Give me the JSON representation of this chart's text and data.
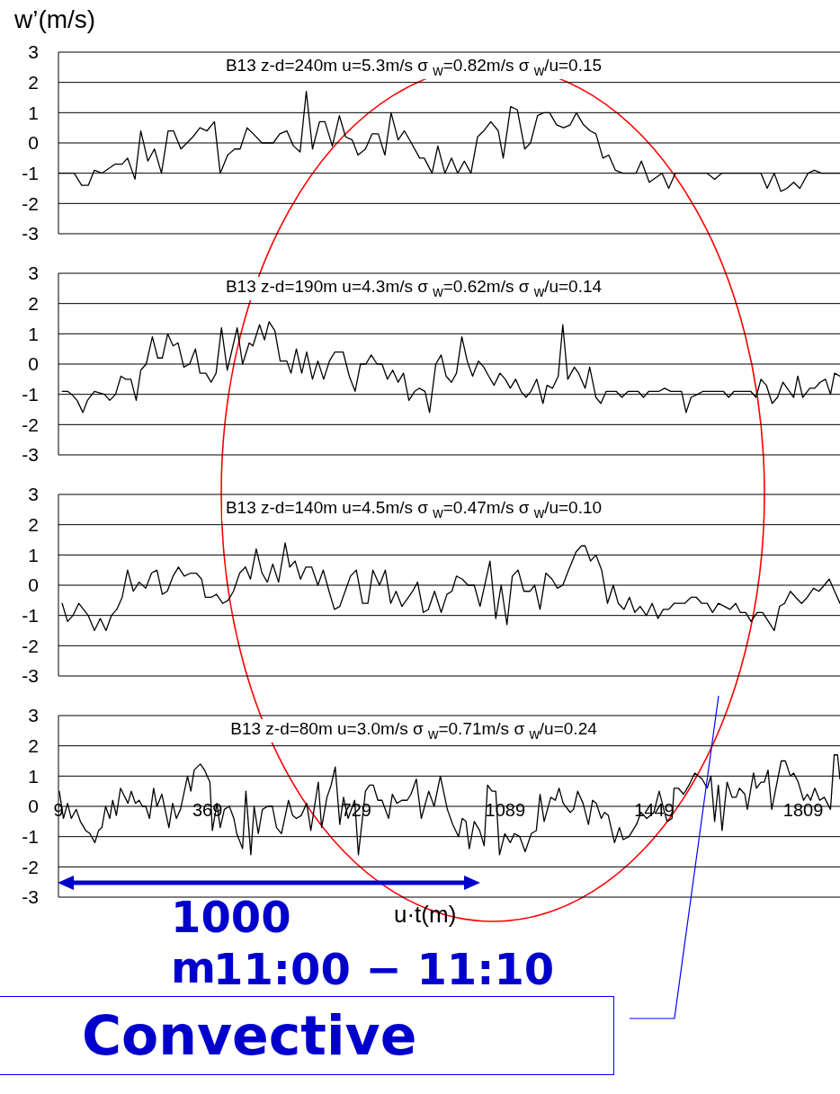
{
  "chart_data": [
    {
      "type": "line",
      "title": "B13 z-d=240m u=5.3m/s σ $_{w}$=0.82m/s σ $_{w}$/u=0.15",
      "ylabel": "w’(m/s)",
      "color": "#000000",
      "marker": "none",
      "grid": "y",
      "tick_labels": "y",
      "xlim": [
        9,
        1898
      ],
      "ylim": [
        -3,
        3
      ],
      "yticks": [
        -3,
        -2,
        -1,
        0,
        1,
        2,
        3
      ],
      "x": [
        10,
        47,
        65,
        81,
        96,
        114,
        146,
        163,
        176,
        194,
        208,
        225,
        241,
        258,
        274,
        287,
        305,
        334,
        351,
        368,
        386,
        400,
        418,
        435,
        448,
        465,
        480,
        501,
        528,
        544,
        561,
        577,
        593,
        608,
        623,
        640,
        653,
        671,
        688,
        703,
        719,
        733,
        751,
        767,
        782,
        798,
        813,
        830,
        845,
        862,
        882,
        893,
        912,
        926,
        943,
        959,
        974,
        990,
        1006,
        1022,
        1037,
        1054,
        1072,
        1084,
        1102,
        1118,
        1136,
        1150,
        1167,
        1182,
        1196,
        1213,
        1230,
        1246,
        1261,
        1278,
        1294,
        1308,
        1325,
        1339,
        1355,
        1373,
        1405,
        1418,
        1437,
        1468,
        1484,
        1500,
        1564,
        1577,
        1595,
        1612,
        1707,
        1722,
        1739,
        1755,
        1770,
        1786,
        1801,
        1821,
        1836,
        1853,
        1898
      ],
      "values": [
        -1,
        -1,
        -1.4,
        -1.4,
        -0.9,
        -1,
        -0.7,
        -0.7,
        -0.5,
        -1.2,
        0.4,
        -0.6,
        -0.2,
        -1,
        0.4,
        0.4,
        -0.2,
        0.2,
        0.5,
        0.4,
        0.7,
        -1,
        -0.4,
        -0.2,
        -0.2,
        0.5,
        0.3,
        0,
        0,
        0.3,
        0.4,
        -0.1,
        -0.3,
        1.7,
        -0.2,
        0.7,
        0.7,
        -0.1,
        0.9,
        0.2,
        0.1,
        -0.4,
        -0.2,
        0.3,
        0.3,
        -0.4,
        1,
        0.1,
        0.4,
        0,
        -0.5,
        -0.5,
        -1,
        -0.1,
        -1,
        -0.5,
        -1,
        -0.6,
        -1,
        0.2,
        0.4,
        0.7,
        0.4,
        -0.5,
        1.2,
        1.1,
        -0.2,
        0,
        0.9,
        1,
        1,
        0.6,
        0.5,
        0.6,
        1,
        0.6,
        0.4,
        0.3,
        -0.5,
        -0.4,
        -0.9,
        -1,
        -1,
        -0.6,
        -1.3,
        -1,
        -1.5,
        -1,
        -1,
        -1,
        -1.2,
        -1,
        -1,
        -1.5,
        -1,
        -1.6,
        -1.5,
        -1.3,
        -1.5,
        -1,
        -0.9,
        -1,
        -1
      ]
    },
    {
      "type": "line",
      "title": "B13 z-d=190m u=4.3m/s σ $_{w}$=0.62m/s σ $_{w}$/u=0.14",
      "color": "#000000",
      "marker": "none",
      "grid": "y",
      "tick_labels": "y",
      "xlim": [
        9,
        1898
      ],
      "ylim": [
        -3,
        3
      ],
      "yticks": [
        -3,
        -2,
        -1,
        0,
        1,
        2,
        3
      ],
      "x": [
        18,
        31,
        41,
        54,
        68,
        79,
        96,
        120,
        133,
        147,
        160,
        171,
        184,
        197,
        208,
        221,
        236,
        249,
        260,
        273,
        286,
        298,
        312,
        326,
        340,
        351,
        365,
        378,
        390,
        403,
        417,
        441,
        454,
        470,
        479,
        495,
        507,
        518,
        532,
        545,
        561,
        571,
        584,
        597,
        609,
        623,
        636,
        650,
        664,
        677,
        697,
        712,
        726,
        739,
        752,
        765,
        779,
        791,
        804,
        817,
        830,
        843,
        856,
        870,
        881,
        895,
        906,
        921,
        934,
        946,
        959,
        971,
        984,
        997,
        1010,
        1024,
        1037,
        1049,
        1062,
        1076,
        1089,
        1101,
        1114,
        1127,
        1139,
        1151,
        1165,
        1180,
        1190,
        1203,
        1217,
        1228,
        1240,
        1256,
        1266,
        1282,
        1293,
        1308,
        1320,
        1333,
        1357,
        1371,
        1386,
        1410,
        1423,
        1436,
        1461,
        1474,
        1489,
        1515,
        1526,
        1538,
        1554,
        1567,
        1616,
        1629,
        1642,
        1682,
        1695,
        1707,
        1720,
        1734,
        1747,
        1760,
        1786,
        1796,
        1808,
        1825,
        1837,
        1850,
        1863,
        1875,
        1885,
        1898
      ],
      "values": [
        -0.9,
        -0.9,
        -1,
        -1.2,
        -1.6,
        -1.2,
        -0.9,
        -1,
        -1.2,
        -1,
        -0.4,
        -0.5,
        -0.5,
        -1.2,
        -0.2,
        0,
        0.9,
        0.2,
        0.2,
        1,
        0.6,
        0.7,
        -0.1,
        0,
        0.5,
        -0.3,
        -0.3,
        -0.6,
        -0.3,
        1.2,
        -0.2,
        1.2,
        0,
        0.7,
        0.6,
        1.3,
        0.8,
        1.4,
        1.1,
        0.1,
        0.1,
        -0.3,
        0.5,
        -0.3,
        0.4,
        -0.5,
        0.1,
        -0.5,
        0.1,
        0.4,
        0.4,
        -0.4,
        -0.9,
        0,
        0,
        0.3,
        0,
        0,
        -0.5,
        -0.2,
        -0.6,
        -0.3,
        -1.2,
        -0.9,
        -0.8,
        -0.9,
        -1.6,
        0,
        0.3,
        -0.4,
        -0.6,
        -0.3,
        0.9,
        0.1,
        -0.4,
        0.1,
        -0.1,
        -0.4,
        -0.7,
        -0.3,
        -0.5,
        -0.8,
        -0.5,
        -0.9,
        -1.1,
        -0.9,
        -0.5,
        -1.3,
        -0.7,
        -0.8,
        -0.4,
        1.3,
        -0.5,
        -0.1,
        -0.3,
        -0.8,
        -0.1,
        -1.1,
        -1.3,
        -0.9,
        -0.9,
        -1.1,
        -0.9,
        -0.9,
        -1.1,
        -0.9,
        -0.9,
        -0.8,
        -0.9,
        -0.9,
        -1.6,
        -1.1,
        -1,
        -0.9,
        -0.9,
        -1.1,
        -0.9,
        -0.9,
        -1.1,
        -0.5,
        -0.7,
        -1.3,
        -1.1,
        -0.6,
        -1.1,
        -0.4,
        -1.1,
        -0.8,
        -0.8,
        -0.6,
        -0.5,
        -1,
        -0.3,
        -0.4
      ]
    },
    {
      "type": "line",
      "title": "B13 z-d=140m u=4.5m/s σ $_{w}$=0.47m/s σ $_{w}$/u=0.10",
      "color": "#000000",
      "marker": "none",
      "grid": "y",
      "tick_labels": "y",
      "xlim": [
        9,
        1898
      ],
      "ylim": [
        -3,
        3
      ],
      "yticks": [
        -3,
        -2,
        -1,
        0,
        1,
        2,
        3
      ],
      "x": [
        18,
        31,
        44,
        58,
        81,
        96,
        110,
        124,
        137,
        150,
        163,
        176,
        190,
        204,
        220,
        234,
        247,
        260,
        272,
        286,
        299,
        313,
        329,
        342,
        355,
        364,
        378,
        391,
        406,
        419,
        432,
        447,
        461,
        473,
        487,
        501,
        514,
        527,
        541,
        557,
        568,
        581,
        594,
        607,
        621,
        636,
        649,
        663,
        676,
        689,
        715,
        729,
        744,
        757,
        769,
        785,
        799,
        812,
        825,
        839,
        855,
        865,
        877,
        891,
        903,
        918,
        934,
        948,
        960,
        971,
        985,
        999,
        1014,
        1028,
        1052,
        1066,
        1079,
        1093,
        1106,
        1120,
        1134,
        1149,
        1160,
        1173,
        1187,
        1202,
        1215,
        1228,
        1242,
        1260,
        1273,
        1282,
        1295,
        1308,
        1322,
        1336,
        1350,
        1362,
        1376,
        1389,
        1402,
        1415,
        1430,
        1444,
        1458,
        1471,
        1484,
        1497,
        1523,
        1538,
        1551,
        1564,
        1577,
        1590,
        1604,
        1619,
        1632,
        1646,
        1657,
        1670,
        1683,
        1698,
        1711,
        1725,
        1739,
        1752,
        1764,
        1778,
        1791,
        1805,
        1819,
        1834,
        1847,
        1860,
        1872,
        1885,
        1898
      ],
      "values": [
        -0.6,
        -1.2,
        -1,
        -0.6,
        -1,
        -1.5,
        -1.1,
        -1.5,
        -1,
        -0.8,
        -0.4,
        0.5,
        -0.2,
        0.1,
        -0.1,
        0.4,
        0.5,
        -0.3,
        -0.2,
        0.3,
        0.6,
        0.3,
        0.4,
        0.4,
        0.2,
        -0.4,
        -0.4,
        -0.3,
        -0.6,
        -0.5,
        -0.2,
        0.4,
        0.6,
        0.2,
        1.2,
        0.4,
        0.1,
        0.7,
        0.1,
        1.4,
        0.6,
        0.8,
        0.2,
        0.6,
        0.6,
        0,
        0.5,
        -0.2,
        -0.8,
        -0.7,
        0.3,
        0.5,
        -0.6,
        -0.6,
        0.5,
        0,
        0.5,
        -0.6,
        -0.2,
        -0.7,
        -0.4,
        -0.2,
        0.1,
        -0.9,
        -0.8,
        -0.2,
        -0.9,
        -0.3,
        -0.2,
        0.3,
        0.2,
        0,
        0,
        -0.7,
        0.8,
        -1.1,
        0,
        -1.3,
        0.3,
        0.5,
        -0.2,
        -0.2,
        0,
        -0.8,
        0.4,
        0.2,
        -0.1,
        0,
        0.5,
        1.1,
        1.3,
        1.3,
        0.8,
        1,
        0.5,
        -0.6,
        0,
        -0.6,
        -0.8,
        -0.4,
        -0.9,
        -0.7,
        -1,
        -0.6,
        -1.1,
        -0.8,
        -0.8,
        -0.6,
        -0.6,
        -0.4,
        -0.4,
        -0.6,
        -0.6,
        -0.9,
        -0.6,
        -0.7,
        -0.8,
        -0.6,
        -0.9,
        -0.9,
        -1.2,
        -0.9,
        -0.9,
        -1.2,
        -1.5,
        -0.7,
        -0.6,
        -0.2,
        -0.4,
        -0.6,
        -0.4,
        -0.1,
        -0.2,
        0,
        0.2,
        -0.2,
        -0.6
      ]
    },
    {
      "type": "line",
      "title": "B13 z-d=80m u=3.0m/s σ $_{w}$=0.71m/s σ $_{w}$/u=0.24",
      "xlabel": "u·t(m)",
      "color": "#000000",
      "marker": "none",
      "grid": "y",
      "xlim": [
        9,
        1898
      ],
      "xticks": [
        9,
        369,
        729,
        1089,
        1449,
        1809
      ],
      "ylim": [
        -3,
        3
      ],
      "yticks": [
        -3,
        -2,
        -1,
        0,
        1,
        2,
        3
      ],
      "annotations": [
        "1000 m",
        "11:00 − 11:10",
        "Convective"
      ],
      "x": [
        11,
        21,
        31,
        40,
        52,
        62,
        75,
        85,
        97,
        106,
        114,
        123,
        133,
        140,
        149,
        159,
        177,
        185,
        195,
        204,
        212,
        220,
        229,
        239,
        247,
        259,
        276,
        285,
        294,
        304,
        321,
        329,
        337,
        352,
        362,
        375,
        381,
        392,
        400,
        410,
        422,
        433,
        440,
        454,
        462,
        474,
        482,
        492,
        502,
        515,
        526,
        536,
        548,
        565,
        575,
        584,
        596,
        609,
        619,
        637,
        645,
        658,
        668,
        678,
        689,
        698,
        709,
        725,
        734,
        751,
        761,
        770,
        781,
        791,
        807,
        816,
        827,
        839,
        852,
        861,
        874,
        886,
        904,
        917,
        932,
        949,
        962,
        976,
        985,
        994,
        1002,
        1014,
        1027,
        1038,
        1046,
        1057,
        1066,
        1075,
        1088,
        1101,
        1111,
        1124,
        1137,
        1152,
        1164,
        1173,
        1183,
        1199,
        1210,
        1219,
        1229,
        1246,
        1254,
        1264,
        1277,
        1290,
        1300,
        1309,
        1321,
        1329,
        1338,
        1353,
        1365,
        1374,
        1388,
        1406,
        1417,
        1431,
        1448,
        1461,
        1472,
        1480,
        1492,
        1497,
        1507,
        1520,
        1533,
        1547,
        1565,
        1577,
        1586,
        1595,
        1604,
        1613,
        1625,
        1637,
        1647,
        1655,
        1668,
        1674,
        1689,
        1696,
        1707,
        1715,
        1724,
        1733,
        1756,
        1766,
        1778,
        1786,
        1797,
        1810,
        1819,
        1827,
        1837,
        1849,
        1860,
        1875,
        1884,
        1892,
        1898
      ],
      "values": [
        0.5,
        -0.4,
        0.1,
        -0.4,
        -0.1,
        -0.5,
        -0.8,
        -0.9,
        -1.2,
        -0.8,
        -0.7,
        0,
        -0.4,
        0.2,
        -0.3,
        0.6,
        0.1,
        0.5,
        0.1,
        0.2,
        0,
        0,
        -0.4,
        0.6,
        0,
        0.4,
        -0.7,
        0.1,
        -0.4,
        -0.1,
        1,
        0.5,
        1.2,
        1.4,
        1.2,
        0.8,
        -0.8,
        0.1,
        -0.7,
        -0.1,
        0,
        -0.4,
        -0.9,
        -1.4,
        0.5,
        -1.6,
        0,
        -0.9,
        -0.1,
        0,
        0,
        -0.7,
        -0.9,
        0.2,
        -0.3,
        -0.4,
        -0.3,
        0.1,
        -0.8,
        0.8,
        -0.7,
        0.3,
        0.7,
        1.3,
        -0.6,
        0.3,
        -0.4,
        0.2,
        -1.6,
        0.5,
        0.7,
        0.7,
        0.2,
        0.2,
        -0.4,
        0.4,
        0.1,
        0.2,
        0.2,
        0.4,
        0.9,
        -0.4,
        0.5,
        0,
        1,
        -0.1,
        -0.6,
        -1,
        -0.4,
        -0.5,
        -1.4,
        -0.5,
        -0.8,
        -1.3,
        0.7,
        0.5,
        0.5,
        -1.6,
        -0.9,
        -1.2,
        -0.9,
        -1,
        -1.5,
        -0.9,
        -0.8,
        0.4,
        -0.5,
        0.3,
        0.2,
        0.6,
        0.1,
        -0.2,
        -0.1,
        0.5,
        0.1,
        -0.6,
        0.2,
        0.1,
        -0.4,
        -0.2,
        -0.3,
        -1.2,
        -0.7,
        -1.1,
        -1,
        -0.6,
        -0.2,
        -0.4,
        -0.2,
        0.5,
        -0.1,
        -0.5,
        -0.4,
        0.6,
        0.6,
        0.4,
        0.7,
        1.1,
        0.9,
        0.6,
        1,
        -0.5,
        0.7,
        -0.8,
        0.8,
        0.3,
        0.3,
        0.6,
        0.4,
        -0.1,
        1.1,
        0.6,
        0.8,
        0.8,
        1.2,
        -0.1,
        1.5,
        1.5,
        1,
        1.1,
        0.8,
        0.2,
        0.4,
        0.2,
        0.6,
        0.2,
        0.3,
        -0.1,
        1.7,
        1.7,
        0.9
      ]
    }
  ]
}
